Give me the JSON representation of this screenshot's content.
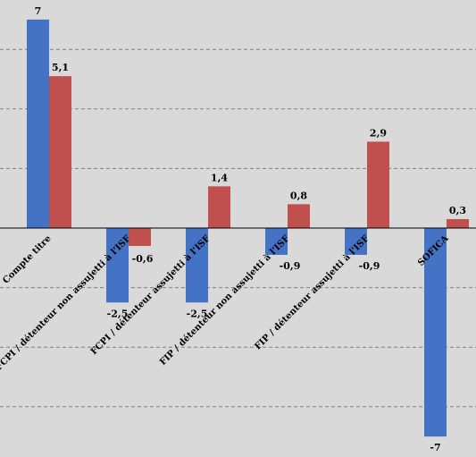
{
  "chart_data": {
    "type": "bar",
    "title": "",
    "xlabel": "",
    "ylabel": "",
    "categories": [
      "Compte titre",
      "FCPI / détenteur non assujetti à l'ISF",
      "FCPI / détenteur assujetti à l'ISF",
      "FIP / détenteur non assujetti à l'ISF",
      "FIP / détenteur assujetti à l'ISF",
      "SOFICA"
    ],
    "series": [
      {
        "values": [
          7,
          -2.5,
          -2.5,
          -0.9,
          -0.9,
          -7
        ],
        "color": "#4472c4"
      },
      {
        "values": [
          5.1,
          -0.6,
          1.4,
          0.8,
          2.9,
          0.3
        ],
        "color": "#c0504d"
      }
    ],
    "value_labels": [
      [
        "7",
        "-2,5",
        "-2,5",
        "-0,9",
        "-0,9",
        "-7"
      ],
      [
        "5,1",
        "-0,6",
        "1,4",
        "0,8",
        "2,9",
        "0,3"
      ]
    ],
    "ylim": [
      -7,
      7
    ],
    "grid": true,
    "legend": "none",
    "background_color": "#d9d9d9",
    "gridline_color": "#7f7f7f"
  }
}
